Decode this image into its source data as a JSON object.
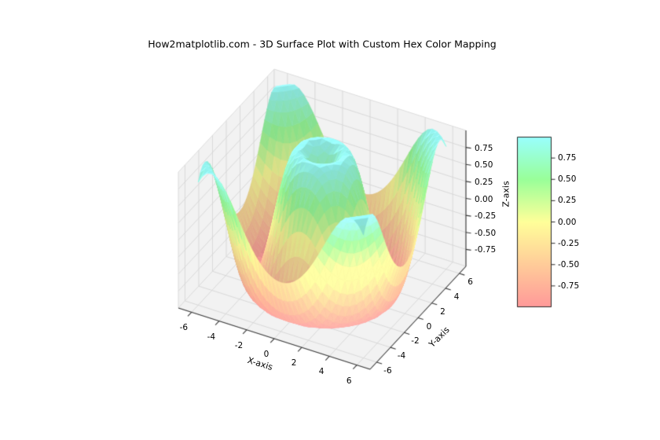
{
  "title": "How2matplotlib.com - 3D Surface Plot with Custom Hex Color Mapping",
  "chart_data": {
    "type": "surface3d",
    "title": "How2matplotlib.com - 3D Surface Plot with Custom Hex Color Mapping",
    "xlabel": "X-axis",
    "ylabel": "Y-axis",
    "zlabel": "Z-axis",
    "x_range": [
      -6,
      6
    ],
    "y_range": [
      -6,
      6
    ],
    "z_range": [
      -1,
      1
    ],
    "grid_intervals": 36,
    "z_function": "sin(sqrt(x^2 + y^2))",
    "x_ticks": {
      "values": [
        -6,
        -4,
        -2,
        0,
        2,
        4,
        6
      ],
      "labels": [
        "-6",
        "-4",
        "-2",
        "0",
        "2",
        "4",
        "6"
      ]
    },
    "y_ticks": {
      "values": [
        -6,
        -4,
        -2,
        0,
        2,
        4,
        6
      ],
      "labels": [
        "-6",
        "-4",
        "-2",
        "0",
        "2",
        "4",
        "6"
      ]
    },
    "z_ticks": {
      "values": [
        0.75,
        0.5,
        0.25,
        0,
        -0.25,
        -0.5,
        -0.75
      ],
      "labels": [
        "0.75",
        "0.50",
        "0.25",
        "0.00",
        "-0.25",
        "-0.50",
        "-0.75"
      ]
    },
    "colorbar": {
      "vmin": -1,
      "vmax": 1,
      "ticks": {
        "values": [
          0.75,
          0.5,
          0.25,
          0,
          -0.25,
          -0.5,
          -0.75
        ],
        "labels": [
          "0.75",
          "0.50",
          "0.25",
          "0.00",
          "-0.25",
          "-0.50",
          "-0.75"
        ]
      }
    },
    "colormap": {
      "name": "custom-hex",
      "stops": [
        "#FF9999",
        "#FFCC99",
        "#FFFF99",
        "#99FF99",
        "#99FFFF"
      ]
    },
    "colors": {
      "background": "#ffffff",
      "pane": "#f2f2f2",
      "pane_edge": "#dcdcdc",
      "grid": "#d6d6d6",
      "axis_line": "#3a3a3a",
      "text": "#000000",
      "colorbar_border": "#2a2a2a"
    }
  }
}
